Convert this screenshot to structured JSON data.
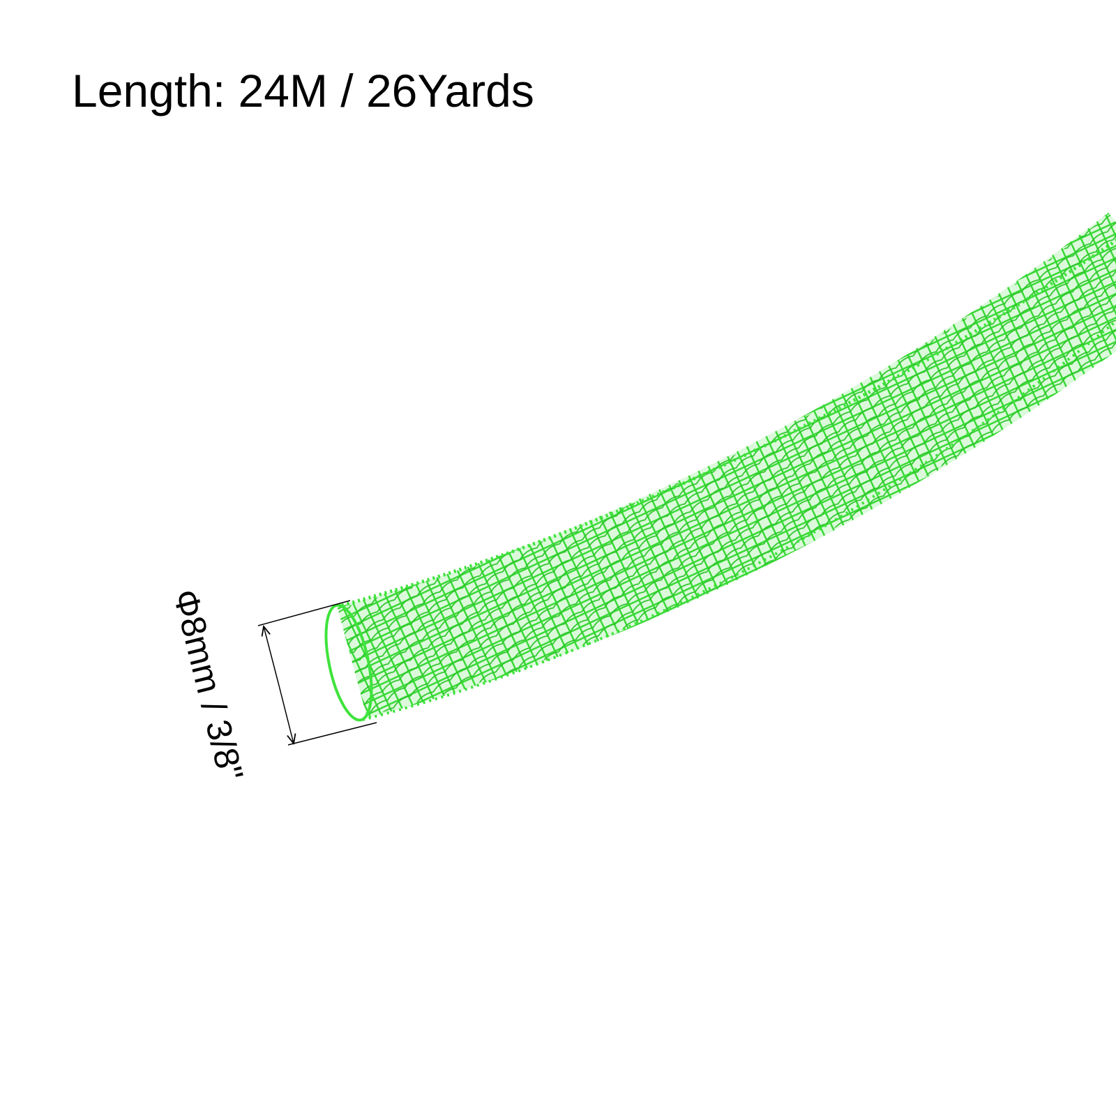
{
  "title": "Length: 24M / 26Yards",
  "dimension_label": "Φ8mm / 3/8\"",
  "product": {
    "name_icon": "mesh-sleeve-tube",
    "color": "#3ee33b"
  },
  "colors": {
    "background": "#ffffff",
    "text": "#000000",
    "mesh": "#3ee33b",
    "mesh_dark": "#22b81f"
  }
}
